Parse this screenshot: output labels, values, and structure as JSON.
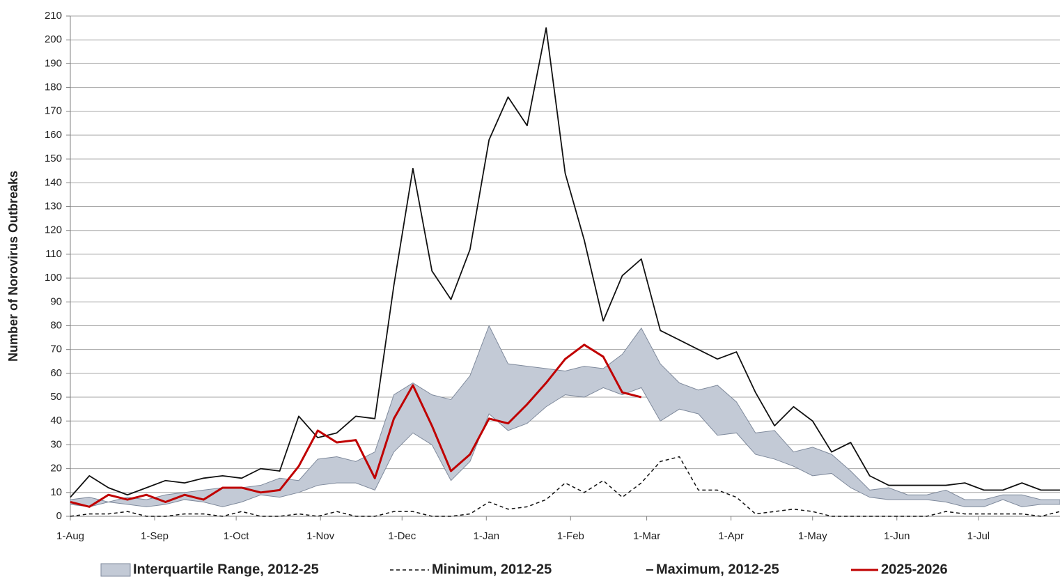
{
  "chart_data": {
    "type": "line",
    "y_label": "Number of Norovirus Outbreaks",
    "x": [
      0,
      7,
      14,
      21,
      28,
      35,
      42,
      49,
      56,
      63,
      70,
      77,
      84,
      91,
      98,
      105,
      112,
      119,
      126,
      133,
      140,
      147,
      154,
      161,
      168,
      175,
      182,
      189,
      196,
      203,
      210,
      217,
      224,
      231,
      238,
      245,
      252,
      259,
      266,
      273,
      280,
      287,
      294,
      301,
      308,
      315,
      322,
      329,
      336,
      343,
      350,
      357,
      364
    ],
    "xlim": [
      0,
      364
    ],
    "xticks": [
      {
        "value": 0,
        "label": "1-Aug"
      },
      {
        "value": 31,
        "label": "1-Sep"
      },
      {
        "value": 61,
        "label": "1-Oct"
      },
      {
        "value": 92,
        "label": "1-Nov"
      },
      {
        "value": 122,
        "label": "1-Dec"
      },
      {
        "value": 153,
        "label": "1-Jan"
      },
      {
        "value": 184,
        "label": "1-Feb"
      },
      {
        "value": 212,
        "label": "1-Mar"
      },
      {
        "value": 243,
        "label": "1-Apr"
      },
      {
        "value": 273,
        "label": "1-May"
      },
      {
        "value": 304,
        "label": "1-Jun"
      },
      {
        "value": 334,
        "label": "1-Jul"
      }
    ],
    "ylim": [
      0,
      210
    ],
    "yticks": [
      0,
      10,
      20,
      30,
      40,
      50,
      60,
      70,
      80,
      90,
      100,
      110,
      120,
      130,
      140,
      150,
      160,
      170,
      180,
      190,
      200,
      210
    ],
    "grid": true,
    "legend": "bottom",
    "band": {
      "name": "Interquartile Range, 2012-25",
      "color": "#c3cad6",
      "lower": [
        5,
        4,
        6,
        5,
        4,
        5,
        7,
        6,
        4,
        6,
        9,
        8,
        10,
        13,
        14,
        14,
        11,
        27,
        35,
        30,
        15,
        23,
        43,
        36,
        39,
        46,
        51,
        50,
        54,
        51,
        54,
        40,
        45,
        43,
        34,
        35,
        26,
        24,
        21,
        17,
        18,
        12,
        8,
        7,
        7,
        7,
        6,
        4,
        4,
        7,
        4,
        5,
        5
      ],
      "upper": [
        7,
        8,
        6,
        8,
        7,
        9,
        10,
        11,
        12,
        12,
        13,
        16,
        15,
        24,
        25,
        23,
        27,
        51,
        56,
        51,
        49,
        59,
        80,
        64,
        63,
        62,
        61,
        63,
        62,
        68,
        79,
        64,
        56,
        53,
        55,
        48,
        35,
        36,
        27,
        29,
        26,
        19,
        11,
        12,
        9,
        9,
        11,
        7,
        7,
        9,
        9,
        7,
        7
      ]
    },
    "series": [
      {
        "name": "Minimum, 2012-25",
        "color": "#111111",
        "style": "dashed",
        "values": [
          0,
          1,
          1,
          2,
          0,
          0,
          1,
          1,
          0,
          2,
          0,
          0,
          1,
          0,
          2,
          0,
          0,
          2,
          2,
          0,
          0,
          1,
          6,
          3,
          4,
          7,
          14,
          10,
          15,
          8,
          14,
          23,
          25,
          11,
          11,
          8,
          1,
          2,
          3,
          2,
          0,
          0,
          0,
          0,
          0,
          0,
          2,
          1,
          1,
          1,
          1,
          0,
          2
        ]
      },
      {
        "name": "Maximum, 2012-25",
        "color": "#111111",
        "style": "solid",
        "values": [
          8,
          17,
          12,
          9,
          12,
          15,
          14,
          16,
          17,
          16,
          20,
          19,
          42,
          33,
          35,
          42,
          41,
          97,
          146,
          103,
          91,
          112,
          158,
          176,
          164,
          205,
          144,
          116,
          82,
          101,
          108,
          78,
          74,
          70,
          66,
          69,
          52,
          38,
          46,
          40,
          27,
          31,
          17,
          13,
          13,
          13,
          13,
          14,
          11,
          11,
          14,
          11,
          11
        ]
      },
      {
        "name": "2025-2026",
        "color": "#c00000",
        "style": "thick",
        "values": [
          6,
          4,
          9,
          7,
          9,
          6,
          9,
          7,
          12,
          12,
          10,
          11,
          21,
          36,
          31,
          32,
          16,
          41,
          55,
          38,
          19,
          26,
          41,
          39,
          47,
          56,
          66,
          72,
          67,
          52,
          50,
          null,
          null,
          null,
          null,
          null,
          null,
          null,
          null,
          null,
          null,
          null,
          null,
          null,
          null,
          null,
          null,
          null,
          null,
          null,
          null,
          null,
          null
        ]
      }
    ]
  }
}
